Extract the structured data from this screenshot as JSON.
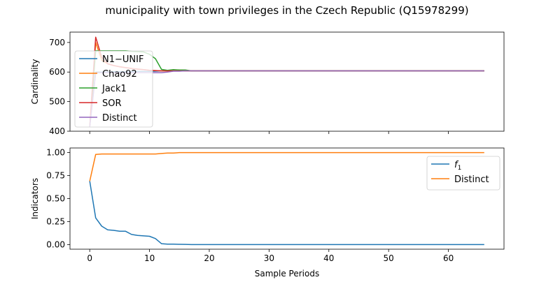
{
  "figure": {
    "title": "municipality with town privileges in the Czech Republic (Q15978299)"
  },
  "chart_data": [
    {
      "type": "line",
      "ylabel": "Cardinality",
      "xlabel": "",
      "xlim": [
        -3.3,
        69.3
      ],
      "ylim": [
        400,
        735
      ],
      "x_ticks": [
        0,
        10,
        20,
        30,
        40,
        50,
        60
      ],
      "x_tick_labels_visible": false,
      "y_ticks": [
        400,
        500,
        600,
        700
      ],
      "y_tick_labels": [
        "400",
        "500",
        "600",
        "700"
      ],
      "grid": false,
      "legend_position": "upper-left",
      "series": [
        {
          "name": "N1−UNIF",
          "color": "#1f77b4",
          "x": [
            0,
            1,
            2,
            3,
            4,
            5,
            6,
            7,
            8,
            9,
            10,
            11,
            12,
            13,
            14,
            15,
            16,
            17,
            66
          ],
          "y": [
            415,
            600,
            600,
            600,
            601,
            601,
            601,
            601,
            602,
            602,
            602,
            603,
            604,
            604,
            604,
            604,
            604,
            604,
            604
          ]
        },
        {
          "name": "Chao92",
          "color": "#ff7f0e",
          "x": [
            0,
            1,
            2,
            3,
            4,
            5,
            6,
            7,
            8,
            9,
            10,
            11,
            12,
            13,
            14,
            15,
            16,
            17,
            66
          ],
          "y": [
            415,
            700,
            640,
            628,
            622,
            618,
            615,
            612,
            610,
            608,
            606,
            605,
            604,
            604,
            604,
            604,
            604,
            604,
            604
          ]
        },
        {
          "name": "Jack1",
          "color": "#2ca02c",
          "x": [
            0,
            1,
            2,
            3,
            4,
            5,
            6,
            7,
            8,
            9,
            10,
            11,
            12,
            13,
            14,
            15,
            16,
            17,
            66
          ],
          "y": [
            415,
            672,
            672,
            672,
            672,
            672,
            672,
            670,
            669,
            668,
            660,
            645,
            609,
            606,
            608,
            607,
            607,
            604,
            604
          ]
        },
        {
          "name": "SOR",
          "color": "#d62728",
          "x": [
            0,
            1,
            2,
            3,
            4,
            5,
            6,
            7,
            8,
            9,
            10,
            11,
            12,
            13,
            14,
            15,
            16,
            17,
            66
          ],
          "y": [
            415,
            718,
            650,
            628,
            622,
            618,
            615,
            612,
            610,
            608,
            606,
            605,
            604,
            604,
            604,
            604,
            604,
            604,
            604
          ]
        },
        {
          "name": "Distinct",
          "color": "#9467bd",
          "x": [
            0,
            1,
            2,
            3,
            4,
            5,
            6,
            7,
            8,
            9,
            10,
            11,
            12,
            13,
            14,
            15,
            16,
            17,
            66
          ],
          "y": [
            415,
            598,
            598,
            598,
            598,
            598,
            598,
            598,
            598,
            598,
            598,
            598,
            598,
            600,
            603,
            603,
            604,
            604,
            604
          ]
        }
      ]
    },
    {
      "type": "line",
      "ylabel": "Indicators",
      "xlabel": "Sample Periods",
      "xlim": [
        -3.3,
        69.3
      ],
      "ylim": [
        -0.05,
        1.05
      ],
      "x_ticks": [
        0,
        10,
        20,
        30,
        40,
        50,
        60
      ],
      "x_tick_labels": [
        "0",
        "10",
        "20",
        "30",
        "40",
        "50",
        "60"
      ],
      "y_ticks": [
        0,
        0.25,
        0.5,
        0.75,
        1.0
      ],
      "y_tick_labels": [
        "0.00",
        "0.25",
        "0.50",
        "0.75",
        "1.00"
      ],
      "grid": false,
      "legend_position": "upper-right",
      "series": [
        {
          "name": "f1",
          "color": "#1f77b4",
          "x": [
            0,
            1,
            2,
            3,
            4,
            5,
            6,
            7,
            8,
            9,
            10,
            11,
            12,
            13,
            14,
            15,
            16,
            17,
            66
          ],
          "y": [
            0.69,
            0.29,
            0.2,
            0.16,
            0.155,
            0.145,
            0.145,
            0.11,
            0.1,
            0.095,
            0.09,
            0.065,
            0.01,
            0.005,
            0.005,
            0.003,
            0.002,
            0,
            0
          ]
        },
        {
          "name": "Distinct",
          "color": "#ff7f0e",
          "x": [
            0,
            1,
            2,
            3,
            4,
            5,
            6,
            7,
            8,
            9,
            10,
            11,
            12,
            13,
            14,
            15,
            16,
            17,
            66
          ],
          "y": [
            0.69,
            0.98,
            0.985,
            0.985,
            0.985,
            0.985,
            0.985,
            0.985,
            0.985,
            0.985,
            0.985,
            0.985,
            0.99,
            0.995,
            0.995,
            1.0,
            1.0,
            1.0,
            1.0
          ]
        }
      ]
    }
  ]
}
